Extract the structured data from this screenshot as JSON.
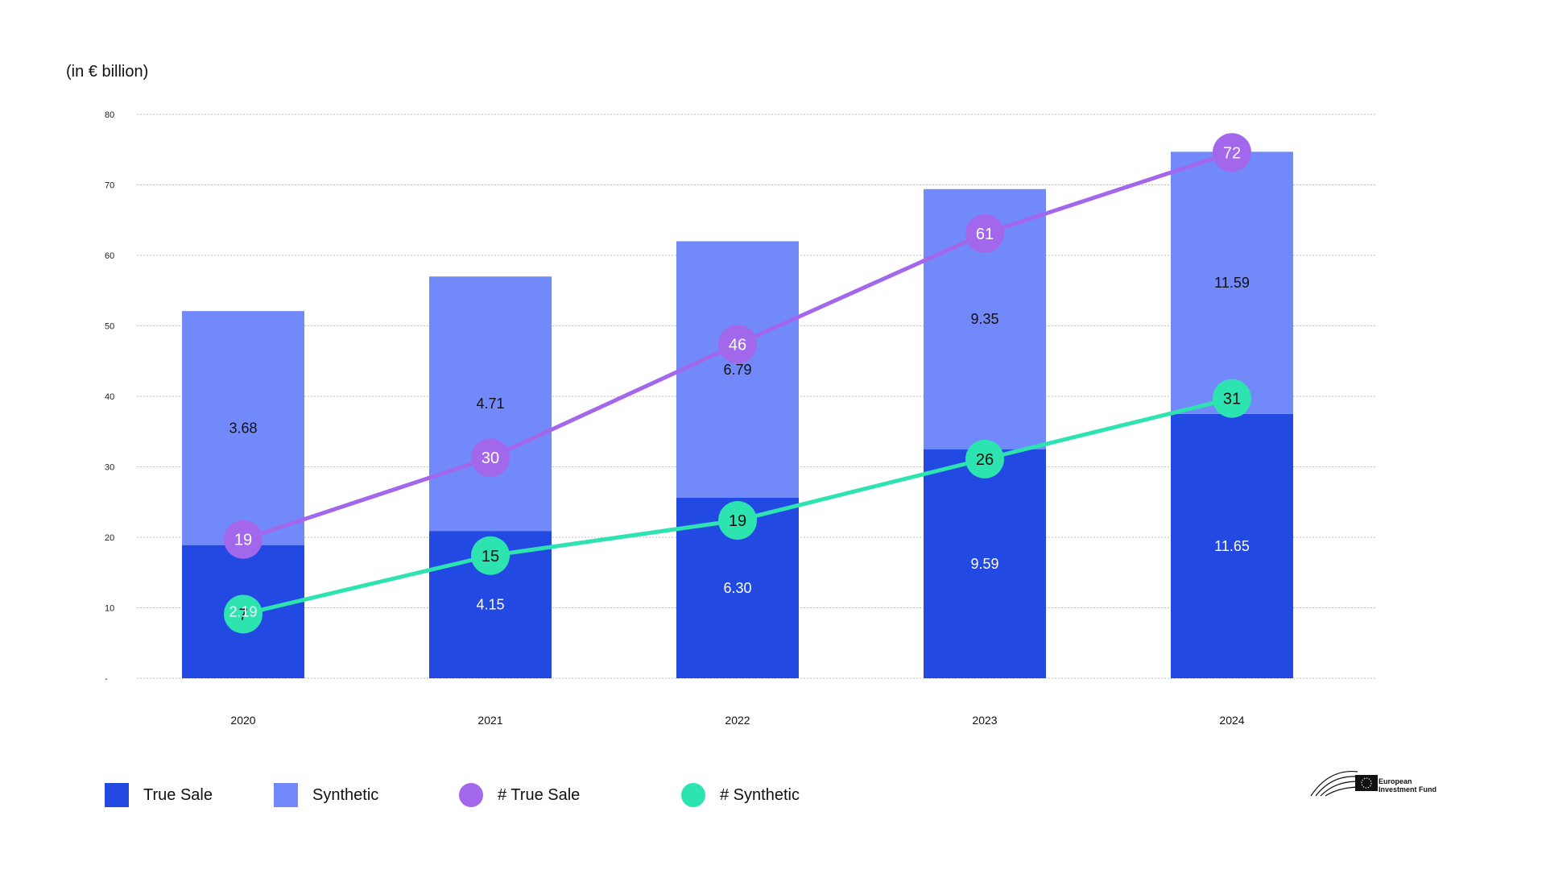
{
  "unit_label": "(in € billion)",
  "chart_data": {
    "type": "bar",
    "stacked": true,
    "categories": [
      "2020",
      "2021",
      "2022",
      "2023",
      "2024"
    ],
    "ylim": [
      0,
      80
    ],
    "yticks": [
      "-",
      "10",
      "20",
      "30",
      "40",
      "50",
      "60",
      "70",
      "80"
    ],
    "grid": true,
    "series": [
      {
        "name": "True Sale",
        "kind": "bar",
        "color": "#2349e3",
        "values": [
          18.9,
          20.9,
          25.6,
          32.5,
          37.5
        ],
        "labels": [
          "2.19",
          "4.15",
          "6.30",
          "9.59",
          "11.65"
        ]
      },
      {
        "name": "Synthetic",
        "kind": "bar",
        "color": "#7289fa",
        "values": [
          33.2,
          36.1,
          36.4,
          36.9,
          37.2
        ],
        "labels": [
          "3.68",
          "4.71",
          "6.79",
          "9.35",
          "11.59"
        ]
      },
      {
        "name": "# True Sale",
        "kind": "line",
        "color": "#a367ec",
        "values": [
          19,
          30,
          46,
          61,
          72
        ],
        "plot_y": [
          19.7,
          31.3,
          47.4,
          63.1,
          74.6
        ]
      },
      {
        "name": "# Synthetic",
        "kind": "line",
        "color": "#2de3b0",
        "values": [
          7,
          15,
          19,
          26,
          31
        ],
        "plot_y": [
          9.1,
          17.4,
          22.4,
          31.1,
          39.7
        ]
      }
    ]
  },
  "legend": [
    {
      "label": "True Sale"
    },
    {
      "label": "Synthetic"
    },
    {
      "label": "# True Sale"
    },
    {
      "label": "# Synthetic"
    }
  ],
  "logo": {
    "line1": "European",
    "line2": "Investment Fund"
  }
}
